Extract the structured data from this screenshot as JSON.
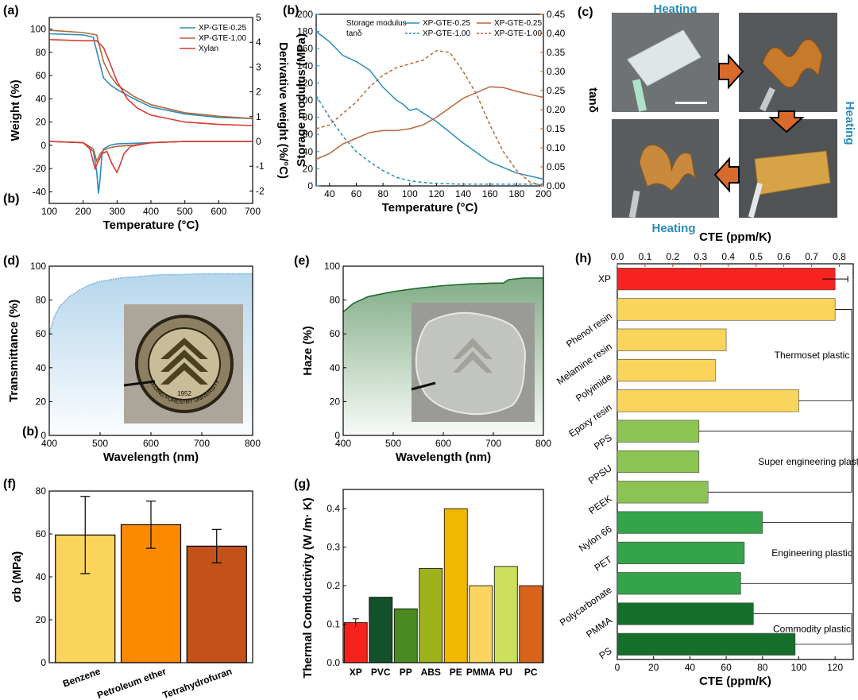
{
  "colors": {
    "blue": "#2a8db8",
    "brown": "#b5673b",
    "xylan": "#d93a33",
    "fill_blue": "#aacfe9",
    "fill_green": "#6b9e70",
    "axis_blue": "#2a8db8",
    "axis_brown": "#c06b35"
  },
  "panel_labels": {
    "a": "(a)",
    "b": "(b)",
    "b2": "(b)",
    "b3": "(b)",
    "c": "(c)",
    "d": "(d)",
    "e": "(e)",
    "f": "(f)",
    "g": "(g)",
    "h": "(h)"
  },
  "panel_c": {
    "heating_top": "Heating",
    "heating_right": "Heating",
    "heating_bottom": "Heating"
  },
  "panel_d_photo_text": {
    "year": "1952",
    "ring": "BEIJING FORESTRY UNIVERSITY"
  },
  "chart_data": [
    {
      "id": "a",
      "type": "line",
      "title": "",
      "xlabel": "Temperature (°C)",
      "ylabel": "Weight (%)",
      "y2label": "Derivative weight (%/°C)",
      "xlim": [
        100,
        700
      ],
      "ylim": [
        -50,
        110
      ],
      "y2lim": [
        -2.5,
        5
      ],
      "xticks": [
        "100",
        "200",
        "300",
        "400",
        "500",
        "600",
        "700"
      ],
      "yticks": [
        "-40",
        "-20",
        "0",
        "20",
        "40",
        "60",
        "80",
        "100"
      ],
      "y2ticks": [
        "-2",
        "-1",
        "0",
        "1",
        "2",
        "3",
        "4",
        "5"
      ],
      "legend": [
        "XP-GTE-0.25",
        "XP-GTE-1.00",
        "Xylan"
      ],
      "series": [
        {
          "name": "XP-GTE-0.25 weight",
          "x": [
            100,
            200,
            230,
            245,
            260,
            280,
            300,
            350,
            400,
            500,
            600,
            700
          ],
          "y": [
            96,
            95,
            93,
            75,
            58,
            52,
            48,
            40,
            33,
            27,
            24,
            23
          ]
        },
        {
          "name": "XP-GTE-1.00 weight",
          "x": [
            100,
            200,
            240,
            260,
            280,
            300,
            350,
            400,
            500,
            600,
            700
          ],
          "y": [
            99,
            97,
            95,
            72,
            60,
            52,
            42,
            35,
            28,
            25,
            23
          ]
        },
        {
          "name": "Xylan weight",
          "x": [
            100,
            200,
            240,
            260,
            280,
            300,
            330,
            360,
            400,
            500,
            600,
            700
          ],
          "y": [
            91,
            90,
            90,
            84,
            70,
            55,
            40,
            32,
            26,
            20,
            18,
            17
          ]
        },
        {
          "name": "XP-GTE-0.25 dtg",
          "x": [
            100,
            200,
            230,
            240,
            245,
            250,
            255,
            260,
            280,
            300,
            400,
            500,
            700
          ],
          "y": [
            0,
            -0.05,
            -0.4,
            -1.2,
            -2.1,
            -1.5,
            -0.6,
            -0.3,
            -0.15,
            -0.1,
            -0.05,
            0,
            0
          ]
        },
        {
          "name": "XP-GTE-1.00 dtg",
          "x": [
            100,
            200,
            230,
            240,
            250,
            260,
            280,
            300,
            350,
            400,
            500,
            700
          ],
          "y": [
            0,
            -0.05,
            -0.3,
            -0.8,
            -0.5,
            -0.35,
            -0.25,
            -0.2,
            -0.15,
            -0.05,
            0,
            0
          ]
        },
        {
          "name": "Xylan dtg",
          "x": [
            100,
            200,
            220,
            235,
            245,
            255,
            270,
            285,
            300,
            310,
            320,
            340,
            400,
            500,
            700
          ],
          "y": [
            0,
            -0.05,
            -0.3,
            -1.1,
            -0.8,
            -0.5,
            -0.4,
            -0.9,
            -1.25,
            -0.9,
            -0.5,
            -0.2,
            -0.05,
            0,
            0
          ]
        }
      ]
    },
    {
      "id": "b",
      "type": "line",
      "xlabel": "Temperature (°C)",
      "ylabel": "Storage modulus (MPa)",
      "y2label": "tanδ",
      "xlim": [
        30,
        200
      ],
      "ylim": [
        0,
        200
      ],
      "y2lim": [
        0,
        0.45
      ],
      "xticks": [
        "40",
        "60",
        "80",
        "100",
        "120",
        "140",
        "160",
        "180",
        "200"
      ],
      "yticks": [
        "0",
        "20",
        "40",
        "60",
        "80",
        "100",
        "120",
        "140",
        "160",
        "180",
        "200"
      ],
      "y2ticks": [
        "0.00",
        "0.05",
        "0.10",
        "0.15",
        "0.20",
        "0.25",
        "0.30",
        "0.35",
        "0.40",
        "0.45"
      ],
      "legend_header": [
        "Storage modulus",
        "tanδ"
      ],
      "legend": [
        "XP-GTE-0.25",
        "XP-GTE-0.25",
        "XP-GTE-1.00",
        "XP-GTE-1.00"
      ],
      "series": [
        {
          "name": "XP-GTE-0.25 E'",
          "x": [
            30,
            40,
            50,
            60,
            70,
            80,
            90,
            95,
            100,
            105,
            110,
            120,
            140,
            160,
            180,
            200
          ],
          "y": [
            180,
            168,
            152,
            145,
            135,
            115,
            100,
            95,
            88,
            90,
            85,
            75,
            50,
            28,
            15,
            8
          ]
        },
        {
          "name": "XP-GTE-1.00 E'",
          "x": [
            30,
            40,
            50,
            60,
            70,
            80,
            90,
            100,
            110,
            120,
            140,
            160,
            180,
            200
          ],
          "y": [
            105,
            80,
            58,
            40,
            28,
            18,
            10,
            6,
            4,
            3,
            2,
            2,
            2,
            2
          ]
        },
        {
          "name": "XP-GTE-0.25 tanδ",
          "x": [
            30,
            40,
            50,
            60,
            70,
            80,
            90,
            100,
            110,
            120,
            140,
            160,
            170,
            180,
            190,
            200
          ],
          "y": [
            0.07,
            0.085,
            0.11,
            0.125,
            0.14,
            0.145,
            0.145,
            0.15,
            0.16,
            0.18,
            0.23,
            0.26,
            0.258,
            0.248,
            0.24,
            0.232
          ]
        },
        {
          "name": "XP-GTE-1.00 tanδ",
          "x": [
            30,
            40,
            50,
            60,
            70,
            80,
            90,
            100,
            110,
            120,
            130,
            140,
            150,
            160,
            170,
            180,
            190,
            200
          ],
          "y": [
            0.15,
            0.16,
            0.19,
            0.22,
            0.26,
            0.29,
            0.31,
            0.32,
            0.33,
            0.355,
            0.35,
            0.3,
            0.24,
            0.16,
            0.09,
            0.04,
            0.01,
            0.0
          ]
        }
      ]
    },
    {
      "id": "d",
      "type": "area",
      "xlabel": "Wavelength (nm)",
      "ylabel": "Transmittance (%)",
      "xlim": [
        400,
        800
      ],
      "ylim": [
        0,
        100
      ],
      "xticks": [
        "400",
        "500",
        "600",
        "700",
        "800"
      ],
      "yticks": [
        "0",
        "20",
        "40",
        "60",
        "80",
        "100"
      ],
      "series": [
        {
          "name": "Transmittance",
          "x": [
            400,
            410,
            420,
            440,
            460,
            480,
            500,
            540,
            580,
            620,
            660,
            700,
            750,
            800
          ],
          "y": [
            60,
            70,
            76,
            82,
            86,
            89,
            91,
            93,
            94,
            95,
            95,
            95.5,
            95.5,
            95.5
          ]
        }
      ]
    },
    {
      "id": "e",
      "type": "area",
      "xlabel": "Wavelength (nm)",
      "ylabel": "Haze (%)",
      "xlim": [
        400,
        800
      ],
      "ylim": [
        0,
        100
      ],
      "xticks": [
        "400",
        "500",
        "600",
        "700",
        "800"
      ],
      "yticks": [
        "0",
        "20",
        "40",
        "60",
        "80",
        "100"
      ],
      "series": [
        {
          "name": "Haze",
          "x": [
            400,
            420,
            450,
            500,
            550,
            600,
            650,
            700,
            720,
            730,
            760,
            800
          ],
          "y": [
            73,
            78,
            82,
            85,
            87,
            88.5,
            89.5,
            90,
            90,
            92,
            93,
            93
          ]
        }
      ]
    },
    {
      "id": "f",
      "type": "bar",
      "xlabel": "",
      "ylabel": "σb (MPa)",
      "ylim": [
        0,
        80
      ],
      "yticks": [
        "0",
        "20",
        "40",
        "60",
        "80"
      ],
      "categories": [
        "Benzene",
        "Petroleum ether",
        "Tetrahydrofuran"
      ],
      "values": [
        59.5,
        64.3,
        54.3
      ],
      "errors": [
        18,
        11,
        7.8
      ],
      "bar_colors": [
        "#fbd55b",
        "#fb8a00",
        "#c2521a"
      ]
    },
    {
      "id": "g",
      "type": "bar",
      "xlabel": "",
      "ylabel": "Thermal Comductivity (W /m· K)",
      "ylim": [
        0,
        0.45
      ],
      "yticks": [
        "0.0",
        "0.1",
        "0.2",
        "0.3",
        "0.4"
      ],
      "categories": [
        "XP",
        "PVC",
        "PP",
        "ABS",
        "PE",
        "PMMA",
        "PU",
        "PC"
      ],
      "values": [
        0.104,
        0.17,
        0.14,
        0.245,
        0.4,
        0.2,
        0.25,
        0.2
      ],
      "errors": [
        0.01,
        0,
        0,
        0,
        0,
        0,
        0,
        0
      ],
      "bar_colors": [
        "#f5231c",
        "#14502a",
        "#4a8a23",
        "#9eb31b",
        "#f2b800",
        "#fbd560",
        "#cde05e",
        "#d8641b"
      ],
      "label_colors": [
        "#e02020",
        "#000000",
        "#000000",
        "#000000",
        "#000000",
        "#000000",
        "#000000",
        "#000000"
      ]
    },
    {
      "id": "h",
      "type": "hbar",
      "xlabel": "CTE (ppm/K)",
      "x2label": "CTE (ppm/K)",
      "xlim": [
        0,
        130
      ],
      "xticks": [
        "0",
        "20",
        "40",
        "60",
        "80",
        "100",
        "120"
      ],
      "x2ticks": [
        "0.0",
        "0.1",
        "0.2",
        "0.3",
        "0.4",
        "0.5",
        "0.6",
        "0.7",
        "0.8"
      ],
      "categories": [
        "XP",
        "Phenol resin",
        "Melamine resin",
        "Polyimide",
        "Epoxy resin",
        "PPS",
        "PPSU",
        "PEEK",
        "Nylon 66",
        "PET",
        "Polycarbonate",
        "PMMA",
        "PS"
      ],
      "values": [
        120,
        120,
        60,
        54,
        100,
        45,
        45,
        50,
        80,
        70,
        68,
        75,
        98
      ],
      "bar_colors": [
        "#f7231f",
        "#fbd55b",
        "#fbd55b",
        "#fbd55b",
        "#fbd55b",
        "#8cc454",
        "#8cc454",
        "#8cc454",
        "#35a34a",
        "#35a34a",
        "#35a34a",
        "#166e2b",
        "#166e2b"
      ],
      "label_colors": [
        "#e02020",
        "#000000",
        "#000000",
        "#000000",
        "#000000",
        "#000000",
        "#000000",
        "#000000",
        "#000000",
        "#000000",
        "#000000",
        "#000000",
        "#000000"
      ],
      "groups": [
        "Thermoset plastic",
        "Super engineering plastic",
        "Engineering plastic",
        "Commodity plastic"
      ]
    }
  ]
}
